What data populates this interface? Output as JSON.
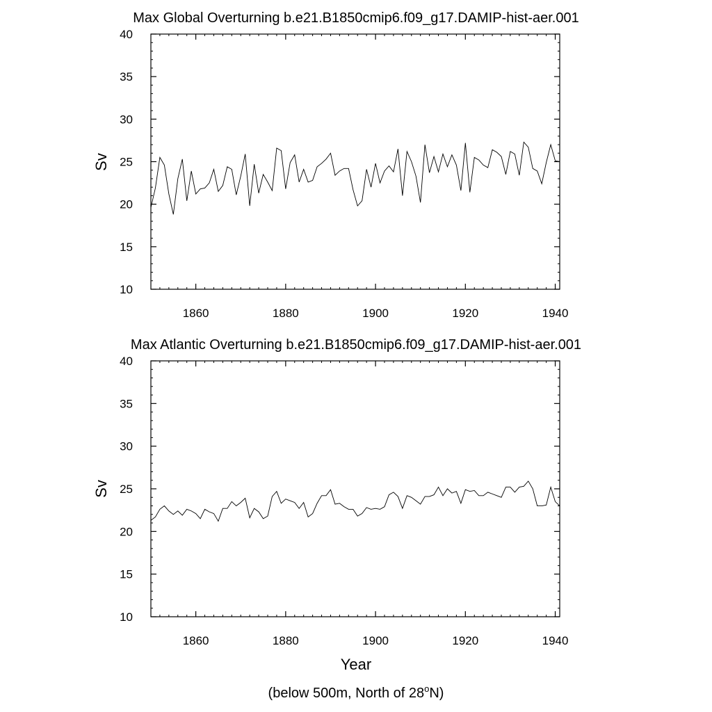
{
  "chart_data": [
    {
      "type": "line",
      "title": "Max Global Overturning b.e21.B1850cmip6.f09_g17.DAMIP-hist-aer.001",
      "xlabel": "",
      "ylabel": "Sv",
      "xlim": [
        1850,
        1941
      ],
      "ylim": [
        10,
        40
      ],
      "xticks": [
        1860,
        1880,
        1900,
        1920,
        1940
      ],
      "yticks": [
        10,
        15,
        20,
        25,
        30,
        35,
        40
      ],
      "grid": false,
      "series": [
        {
          "x": [
            1850,
            1851,
            1852,
            1853,
            1854,
            1855,
            1856,
            1857,
            1858,
            1859,
            1860,
            1861,
            1862,
            1863,
            1864,
            1865,
            1866,
            1867,
            1868,
            1869,
            1870,
            1871,
            1872,
            1873,
            1874,
            1875,
            1876,
            1877,
            1878,
            1879,
            1880,
            1881,
            1882,
            1883,
            1884,
            1885,
            1886,
            1887,
            1888,
            1889,
            1890,
            1891,
            1892,
            1893,
            1894,
            1895,
            1896,
            1897,
            1898,
            1899,
            1900,
            1901,
            1902,
            1903,
            1904,
            1905,
            1906,
            1907,
            1908,
            1909,
            1910,
            1911,
            1912,
            1913,
            1914,
            1915,
            1916,
            1917,
            1918,
            1919,
            1920,
            1921,
            1922,
            1923,
            1924,
            1925,
            1926,
            1927,
            1928,
            1929,
            1930,
            1931,
            1932,
            1933,
            1934,
            1935,
            1936,
            1937,
            1938,
            1939,
            1940,
            1941
          ],
          "y": [
            19.6,
            21.9,
            25.5,
            24.6,
            21.2,
            18.8,
            23.0,
            25.3,
            20.4,
            23.9,
            21.2,
            21.8,
            21.9,
            22.5,
            24.1,
            21.5,
            22.2,
            24.4,
            24.1,
            21.1,
            23.3,
            25.9,
            19.8,
            24.7,
            21.3,
            23.5,
            22.6,
            21.6,
            26.6,
            26.3,
            21.8,
            24.9,
            25.8,
            22.6,
            24.1,
            22.6,
            22.8,
            24.4,
            24.8,
            25.3,
            26.0,
            23.4,
            23.9,
            24.2,
            24.2,
            21.7,
            19.8,
            20.4,
            24.1,
            22.0,
            24.8,
            22.5,
            23.9,
            24.5,
            23.8,
            26.5,
            21.0,
            26.2,
            25.0,
            23.3,
            20.2,
            27.0,
            23.7,
            25.6,
            23.8,
            25.9,
            24.4,
            25.8,
            24.6,
            21.6,
            27.2,
            21.4,
            25.5,
            25.2,
            24.6,
            24.3,
            26.4,
            26.1,
            25.6,
            23.5,
            26.2,
            25.9,
            23.4,
            27.3,
            26.7,
            24.2,
            23.9,
            22.4,
            24.9,
            27.0,
            25.1,
            25.0
          ]
        }
      ]
    },
    {
      "type": "line",
      "title": "Max Atlantic Overturning b.e21.B1850cmip6.f09_g17.DAMIP-hist-aer.001",
      "xlabel": "Year",
      "ylabel": "Sv",
      "xlim": [
        1850,
        1941
      ],
      "ylim": [
        10,
        40
      ],
      "xticks": [
        1860,
        1880,
        1900,
        1920,
        1940
      ],
      "yticks": [
        10,
        15,
        20,
        25,
        30,
        35,
        40
      ],
      "grid": false,
      "series": [
        {
          "x": [
            1850,
            1851,
            1852,
            1853,
            1854,
            1855,
            1856,
            1857,
            1858,
            1859,
            1860,
            1861,
            1862,
            1863,
            1864,
            1865,
            1866,
            1867,
            1868,
            1869,
            1870,
            1871,
            1872,
            1873,
            1874,
            1875,
            1876,
            1877,
            1878,
            1879,
            1880,
            1881,
            1882,
            1883,
            1884,
            1885,
            1886,
            1887,
            1888,
            1889,
            1890,
            1891,
            1892,
            1893,
            1894,
            1895,
            1896,
            1897,
            1898,
            1899,
            1900,
            1901,
            1902,
            1903,
            1904,
            1905,
            1906,
            1907,
            1908,
            1909,
            1910,
            1911,
            1912,
            1913,
            1914,
            1915,
            1916,
            1917,
            1918,
            1919,
            1920,
            1921,
            1922,
            1923,
            1924,
            1925,
            1926,
            1927,
            1928,
            1929,
            1930,
            1931,
            1932,
            1933,
            1934,
            1935,
            1936,
            1937,
            1938,
            1939,
            1940,
            1941
          ],
          "y": [
            21.3,
            21.7,
            22.6,
            23.0,
            22.4,
            22.0,
            22.4,
            21.9,
            22.6,
            22.4,
            22.1,
            21.5,
            22.6,
            22.3,
            22.1,
            21.2,
            22.7,
            22.7,
            23.5,
            23.0,
            23.4,
            23.9,
            21.6,
            22.7,
            22.3,
            21.5,
            21.8,
            24.1,
            24.7,
            23.3,
            23.8,
            23.6,
            23.4,
            22.7,
            23.4,
            21.7,
            22.1,
            23.3,
            24.2,
            24.2,
            24.9,
            23.2,
            23.3,
            22.9,
            22.6,
            22.6,
            21.8,
            22.1,
            22.8,
            22.6,
            22.7,
            22.6,
            22.9,
            24.3,
            24.6,
            24.1,
            22.7,
            24.2,
            24.0,
            23.6,
            23.2,
            24.1,
            24.1,
            24.3,
            25.2,
            24.2,
            25.0,
            24.5,
            24.7,
            23.3,
            24.9,
            24.7,
            24.8,
            24.2,
            24.2,
            24.6,
            24.4,
            24.2,
            24.0,
            25.2,
            25.2,
            24.6,
            25.2,
            25.3,
            25.9,
            25.0,
            23.0,
            23.0,
            23.1,
            25.2,
            23.5,
            23.0
          ]
        }
      ]
    }
  ],
  "footnote": {
    "prefix": "(below 500m, North of 28",
    "superscript": "o",
    "suffix": "N)"
  }
}
